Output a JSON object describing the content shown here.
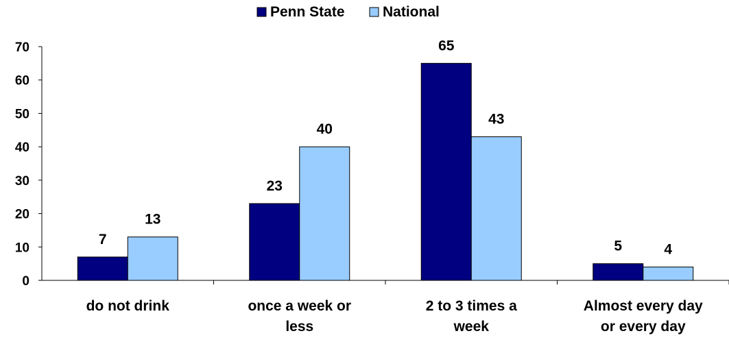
{
  "chart_data": {
    "type": "bar",
    "title": "",
    "xlabel": "",
    "ylabel": "",
    "categories": [
      [
        "do not drink"
      ],
      [
        "once a week or",
        "less"
      ],
      [
        "2 to 3 times a",
        "week"
      ],
      [
        "Almost every day",
        "or every day"
      ]
    ],
    "series": [
      {
        "name": "Penn State",
        "values": [
          7,
          23,
          65,
          5
        ],
        "color": "#000080"
      },
      {
        "name": "National",
        "values": [
          13,
          40,
          43,
          4
        ],
        "color": "#99CCFF"
      }
    ],
    "ylim": [
      0,
      70
    ],
    "yticks": [
      0,
      10,
      20,
      30,
      40,
      50,
      60,
      70
    ],
    "grid": false,
    "legend_position": "top-center",
    "data_labels": true
  }
}
